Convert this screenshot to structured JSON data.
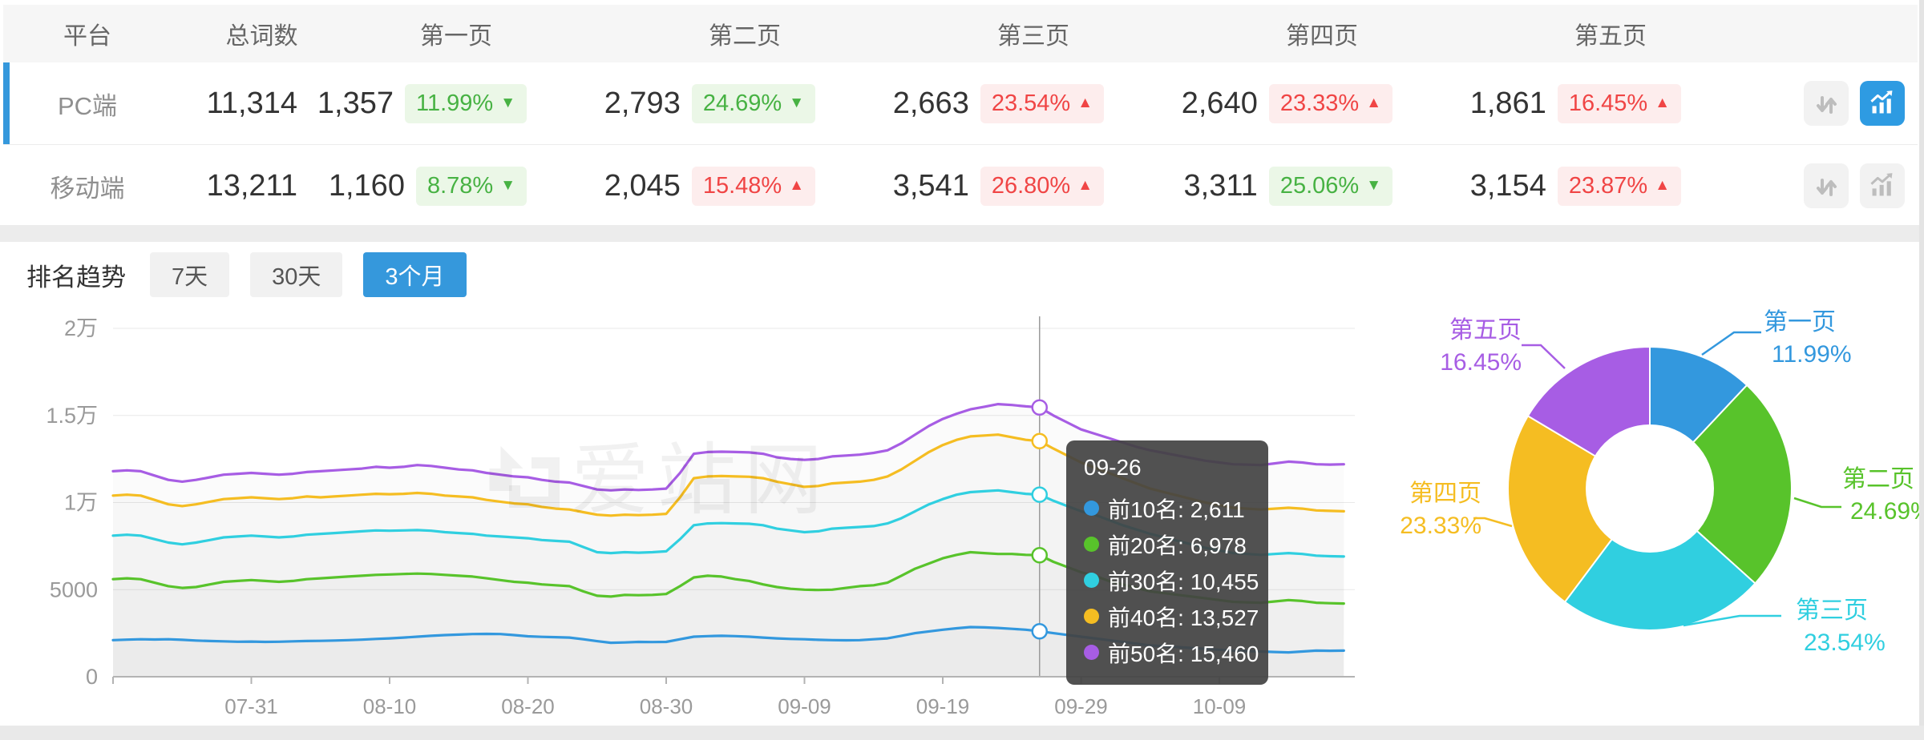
{
  "accent": "#3598dc",
  "table": {
    "headers": [
      "平台",
      "总词数",
      "第一页",
      "第二页",
      "第三页",
      "第四页",
      "第五页"
    ],
    "rows": [
      {
        "platform": "PC端",
        "total": "11,314",
        "selected": true,
        "trend_active": true,
        "pages": [
          {
            "value": "1,357",
            "pct": "11.99%",
            "dir": "down",
            "tone": "green"
          },
          {
            "value": "2,793",
            "pct": "24.69%",
            "dir": "down",
            "tone": "green"
          },
          {
            "value": "2,663",
            "pct": "23.54%",
            "dir": "up",
            "tone": "red"
          },
          {
            "value": "2,640",
            "pct": "23.33%",
            "dir": "up",
            "tone": "red"
          },
          {
            "value": "1,861",
            "pct": "16.45%",
            "dir": "up",
            "tone": "red"
          }
        ]
      },
      {
        "platform": "移动端",
        "total": "13,211",
        "selected": false,
        "trend_active": false,
        "pages": [
          {
            "value": "1,160",
            "pct": "8.78%",
            "dir": "down",
            "tone": "green"
          },
          {
            "value": "2,045",
            "pct": "15.48%",
            "dir": "up",
            "tone": "red"
          },
          {
            "value": "3,541",
            "pct": "26.80%",
            "dir": "up",
            "tone": "red"
          },
          {
            "value": "3,311",
            "pct": "25.06%",
            "dir": "down",
            "tone": "green"
          },
          {
            "value": "3,154",
            "pct": "23.87%",
            "dir": "up",
            "tone": "red"
          }
        ]
      }
    ]
  },
  "trend": {
    "title": "排名趋势",
    "ranges": [
      {
        "label": "7天",
        "active": false
      },
      {
        "label": "30天",
        "active": false
      },
      {
        "label": "3个月",
        "active": true
      }
    ]
  },
  "watermark": "爱站网",
  "chart_data": [
    {
      "type": "line",
      "title": "排名趋势 3个月",
      "ylim": [
        0,
        20000
      ],
      "grid": true,
      "y_ticks": [
        {
          "v": 0,
          "label": "0"
        },
        {
          "v": 5000,
          "label": "5000"
        },
        {
          "v": 10000,
          "label": "1万"
        },
        {
          "v": 15000,
          "label": "1.5万"
        },
        {
          "v": 20000,
          "label": "2万"
        }
      ],
      "x_ticks": [
        {
          "day": 10,
          "label": "07-31"
        },
        {
          "day": 20,
          "label": "08-10"
        },
        {
          "day": 30,
          "label": "08-20"
        },
        {
          "day": 40,
          "label": "08-30"
        },
        {
          "day": 50,
          "label": "09-09"
        },
        {
          "day": 60,
          "label": "09-19"
        },
        {
          "day": 70,
          "label": "09-29"
        },
        {
          "day": 80,
          "label": "10-09"
        }
      ],
      "days": 90,
      "crosshair": {
        "day": 67,
        "label": "09-26"
      },
      "series": [
        {
          "name": "前10名",
          "color": "#3398de",
          "values": [
            2100,
            2130,
            2150,
            2140,
            2150,
            2120,
            2080,
            2050,
            2030,
            2010,
            2020,
            2000,
            2010,
            2030,
            2050,
            2060,
            2080,
            2100,
            2130,
            2170,
            2200,
            2250,
            2300,
            2350,
            2390,
            2420,
            2450,
            2460,
            2450,
            2390,
            2320,
            2290,
            2270,
            2250,
            2150,
            2040,
            1950,
            1970,
            2000,
            1990,
            2000,
            2150,
            2300,
            2330,
            2350,
            2330,
            2300,
            2250,
            2200,
            2170,
            2150,
            2120,
            2100,
            2090,
            2100,
            2150,
            2200,
            2350,
            2500,
            2600,
            2700,
            2780,
            2850,
            2830,
            2800,
            2750,
            2700,
            2611,
            2500,
            2400,
            2300,
            2200,
            2100,
            2000,
            1900,
            1800,
            1750,
            1700,
            1650,
            1600,
            1550,
            1500,
            1470,
            1450,
            1420,
            1400,
            1450,
            1500,
            1490,
            1500
          ]
        },
        {
          "name": "前20名",
          "color": "#58c32b",
          "values": [
            5600,
            5650,
            5600,
            5400,
            5200,
            5100,
            5150,
            5300,
            5450,
            5500,
            5550,
            5500,
            5450,
            5500,
            5600,
            5650,
            5700,
            5750,
            5800,
            5850,
            5870,
            5900,
            5920,
            5900,
            5850,
            5800,
            5750,
            5650,
            5550,
            5450,
            5400,
            5300,
            5250,
            5200,
            4900,
            4650,
            4600,
            4700,
            4680,
            4700,
            4750,
            5200,
            5700,
            5800,
            5750,
            5600,
            5500,
            5300,
            5150,
            5050,
            5000,
            4980,
            5000,
            5100,
            5200,
            5250,
            5400,
            5800,
            6200,
            6500,
            6800,
            7000,
            7150,
            7100,
            7050,
            7050,
            7000,
            6978,
            6600,
            6300,
            6000,
            5800,
            5500,
            5300,
            5100,
            4900,
            4800,
            4700,
            4600,
            4500,
            4400,
            4300,
            4270,
            4250,
            4320,
            4400,
            4350,
            4250,
            4220,
            4200
          ]
        },
        {
          "name": "前30名",
          "color": "#30cfe0",
          "values": [
            8100,
            8150,
            8100,
            7900,
            7700,
            7600,
            7700,
            7850,
            8000,
            8050,
            8100,
            8050,
            8000,
            8050,
            8150,
            8200,
            8250,
            8300,
            8350,
            8400,
            8380,
            8400,
            8420,
            8380,
            8300,
            8250,
            8200,
            8100,
            8050,
            8000,
            7950,
            7850,
            7800,
            7750,
            7450,
            7150,
            7100,
            7150,
            7120,
            7150,
            7200,
            7900,
            8700,
            8800,
            8820,
            8800,
            8780,
            8700,
            8500,
            8400,
            8300,
            8350,
            8500,
            8550,
            8600,
            8650,
            8800,
            9100,
            9500,
            9900,
            10200,
            10450,
            10600,
            10650,
            10700,
            10600,
            10500,
            10455,
            10100,
            9800,
            9500,
            9300,
            9000,
            8700,
            8450,
            8200,
            8000,
            7800,
            7600,
            7400,
            7250,
            7100,
            7050,
            7000,
            7050,
            7100,
            7050,
            6950,
            6920,
            6900
          ]
        },
        {
          "name": "前40名",
          "color": "#f5bd22",
          "values": [
            10400,
            10450,
            10400,
            10150,
            9900,
            9800,
            9900,
            10050,
            10200,
            10250,
            10300,
            10250,
            10200,
            10250,
            10350,
            10300,
            10350,
            10400,
            10450,
            10500,
            10480,
            10500,
            10550,
            10500,
            10400,
            10350,
            10300,
            10150,
            10050,
            9950,
            9900,
            9750,
            9650,
            9600,
            9450,
            9300,
            9250,
            9300,
            9280,
            9300,
            9350,
            10300,
            11400,
            11500,
            11520,
            11500,
            11480,
            11400,
            11200,
            11050,
            10900,
            10950,
            11100,
            11150,
            11200,
            11300,
            11500,
            11900,
            12400,
            12900,
            13300,
            13600,
            13800,
            13850,
            13900,
            13750,
            13600,
            13527,
            13100,
            12700,
            12300,
            12000,
            11700,
            11400,
            11100,
            10800,
            10600,
            10400,
            10200,
            10000,
            9850,
            9700,
            9650,
            9600,
            9650,
            9700,
            9650,
            9550,
            9520,
            9500
          ]
        },
        {
          "name": "前50名",
          "color": "#a75de4",
          "values": [
            11800,
            11850,
            11800,
            11550,
            11300,
            11200,
            11300,
            11450,
            11600,
            11650,
            11700,
            11650,
            11600,
            11650,
            11750,
            11800,
            11850,
            11900,
            11950,
            12050,
            12000,
            12050,
            12150,
            12100,
            12000,
            11900,
            11850,
            11700,
            11600,
            11500,
            11450,
            11300,
            11200,
            11150,
            10950,
            10750,
            10700,
            10750,
            10720,
            10750,
            10800,
            11700,
            12800,
            12900,
            12920,
            12900,
            12880,
            12800,
            12600,
            12500,
            12450,
            12500,
            12650,
            12700,
            12750,
            12850,
            13000,
            13400,
            13900,
            14400,
            14800,
            15100,
            15350,
            15500,
            15650,
            15600,
            15520,
            15460,
            15000,
            14600,
            14200,
            13950,
            13700,
            13450,
            13200,
            13000,
            12850,
            12700,
            12550,
            12400,
            12300,
            12200,
            12180,
            12150,
            12250,
            12350,
            12300,
            12200,
            12180,
            12200
          ]
        }
      ],
      "tooltip": {
        "title": "09-26",
        "rows": [
          {
            "name": "前10名",
            "value": "2,611",
            "color": "#3398de"
          },
          {
            "name": "前20名",
            "value": "6,978",
            "color": "#58c32b"
          },
          {
            "name": "前30名",
            "value": "10,455",
            "color": "#30cfe0"
          },
          {
            "name": "前40名",
            "value": "13,527",
            "color": "#f5bd22"
          },
          {
            "name": "前50名",
            "value": "15,460",
            "color": "#a75de4"
          }
        ]
      }
    },
    {
      "type": "pie",
      "labels": [
        "第一页",
        "第二页",
        "第三页",
        "第四页",
        "第五页"
      ],
      "values": [
        11.99,
        24.69,
        23.54,
        23.33,
        16.45
      ],
      "display": [
        "11.99%",
        "24.69%",
        "23.54%",
        "23.33%",
        "16.45%"
      ],
      "colors": [
        "#3398de",
        "#58c32b",
        "#30cfe0",
        "#f5bd22",
        "#a75de4"
      ],
      "legend_position": "around"
    }
  ]
}
